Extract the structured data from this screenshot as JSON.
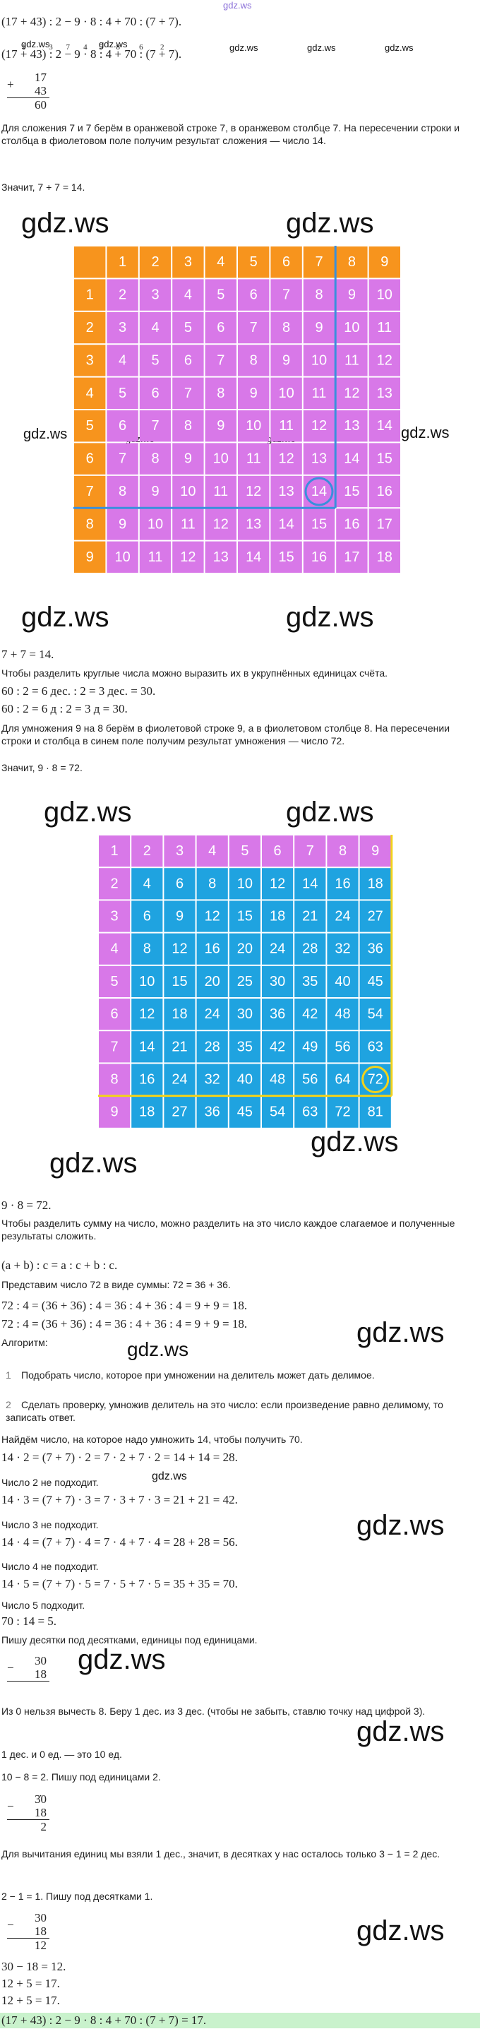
{
  "watermark": "gdz.ws",
  "expression": "(17 + 43) : 2 − 9 · 8 : 4 + 70 : (7 + 7).",
  "order_line": {
    "tokens": [
      "(17",
      "+",
      "43)",
      ":",
      "2",
      "−",
      "9",
      "·",
      "8",
      ":",
      "4",
      "+",
      "70",
      ":",
      "(7",
      "+",
      "7)."
    ],
    "marks": [
      1,
      3,
      7,
      4,
      5,
      8,
      6,
      2
    ]
  },
  "column_add": {
    "sign": "+",
    "rows": [
      "17",
      "43",
      "60"
    ]
  },
  "p_add": "Для сложения 7 и 7 берём в оранжевой строке 7, в оранжевом столбце 7. На пересечении строки и столбца в фиолетовом поле получим результат сложения — число 14.",
  "p_add_result": "Значит, 7 + 7 = 14.",
  "table1": {
    "col_header": [
      1,
      2,
      3,
      4,
      5,
      6,
      7,
      8,
      9
    ],
    "rows": [
      [
        1,
        2,
        3,
        4,
        5,
        6,
        7,
        8,
        9,
        10
      ],
      [
        2,
        3,
        4,
        5,
        6,
        7,
        8,
        9,
        10,
        11
      ],
      [
        3,
        4,
        5,
        6,
        7,
        8,
        9,
        10,
        11,
        12
      ],
      [
        4,
        5,
        6,
        7,
        8,
        9,
        10,
        11,
        12,
        13
      ],
      [
        5,
        6,
        7,
        8,
        9,
        10,
        11,
        12,
        13,
        14
      ],
      [
        6,
        7,
        8,
        9,
        10,
        11,
        12,
        13,
        14,
        15
      ],
      [
        7,
        8,
        9,
        10,
        11,
        12,
        13,
        14,
        15,
        16
      ],
      [
        8,
        9,
        10,
        11,
        12,
        13,
        14,
        15,
        16,
        17
      ],
      [
        9,
        10,
        11,
        12,
        13,
        14,
        15,
        16,
        17,
        18
      ]
    ]
  },
  "eq_add": "7 + 7 = 14.",
  "p_round": "Чтобы разделить круглые числа можно выразить их в укрупнённых единицах счёта.",
  "eq_div1": "60 : 2 = 6 дес. : 2 = 3 дес. = 30.",
  "eq_div2": "60 : 2 = 6 д : 2 = 3 д = 30.",
  "p_mul": "Для умножения 9 на 8 берём в фиолетовой строке 9, а в фиолетовом столбце 8. На пересечении строки и столбца в синем поле получим результат умножения — число 72.",
  "p_mul_result": "Значит, 9 · 8 = 72.",
  "table2": {
    "rows": [
      [
        1,
        2,
        3,
        4,
        5,
        6,
        7,
        8,
        9
      ],
      [
        2,
        4,
        6,
        8,
        10,
        12,
        14,
        16,
        18
      ],
      [
        3,
        6,
        9,
        12,
        15,
        18,
        21,
        24,
        27
      ],
      [
        4,
        8,
        12,
        16,
        20,
        24,
        28,
        32,
        36
      ],
      [
        5,
        10,
        15,
        20,
        25,
        30,
        35,
        40,
        45
      ],
      [
        6,
        12,
        18,
        24,
        30,
        36,
        42,
        48,
        54
      ],
      [
        7,
        14,
        21,
        28,
        35,
        42,
        49,
        56,
        63
      ],
      [
        8,
        16,
        24,
        32,
        40,
        48,
        56,
        64,
        72
      ],
      [
        9,
        18,
        27,
        36,
        45,
        54,
        63,
        72,
        81
      ]
    ]
  },
  "eq_mul": "9 · 8 = 72.",
  "p_sum_div": "Чтобы разделить сумму на число, можно разделить на это число каждое слагаемое и полученные результаты сложить.",
  "rule": "(a + b) : c = a : c + b : c.",
  "p_repr": "Представим число 72 в виде суммы: 72 = 36 + 36.",
  "eq_72a": "72 : 4 = (36 + 36) : 4 = 36 : 4 + 36 : 4 = 9 + 9 = 18.",
  "eq_72b": "72 : 4 = (36 + 36) : 4 = 36 : 4 + 36 : 4 = 9 + 9 = 18.",
  "algorithm_title": "Алгоритм:",
  "algorithm": [
    {
      "number": 1,
      "text": "Подобрать число, которое при умножении на делитель может дать делимое."
    },
    {
      "number": 2,
      "text": "Сделать проверку, умножив делитель на это число: если произведение равно делимому, то записать ответ."
    }
  ],
  "p_find": "Найдём число, на которое надо умножить 14, чтобы получить 70.",
  "trials": [
    {
      "eq": "14 · 2 = (7 + 7) · 2 = 7 · 2 + 7 · 2 = 14 + 14 = 28.",
      "note": "Число 2 не подходит."
    },
    {
      "eq": "14 · 3 = (7 + 7) · 3 = 7 · 3 + 7 · 3 = 21 + 21 = 42.",
      "note": "Число 3 не подходит."
    },
    {
      "eq": "14 · 4 = (7 + 7) · 4 = 7 · 4 + 7 · 4 = 28 + 28 = 56.",
      "note": "Число 4 не подходит."
    },
    {
      "eq": "14 · 5 = (7 + 7) · 5 = 7 · 5 + 7 · 5 = 35 + 35 = 70.",
      "note": "Число 5 подходит."
    }
  ],
  "eq_70": "70 : 14 = 5.",
  "p_write": "Пишу десятки под десятками, единицы под единицами.",
  "column_sub1": {
    "sign": "−",
    "rows": [
      "30",
      "18"
    ]
  },
  "p_borrow": "Из 0 нельзя вычесть 8. Беру 1 дес. из 3 дес. (чтобы не забыть, ставлю точку над цифрой 3).",
  "p_ten": "1 дес. и 0 ед. — это 10 ед.",
  "p_units": "10 − 8 = 2. Пишу под единицами 2.",
  "column_sub2": {
    "sign": "−",
    "rows": [
      "3̇0",
      "18",
      "2"
    ]
  },
  "p_tens": "Для вычитания единиц мы взяли 1 дес., значит, в десятках у нас осталось только 3 − 1 = 2 дес.",
  "p_tens2": "2 − 1 = 1. Пишу под десятками 1.",
  "column_sub3": {
    "sign": "−",
    "rows": [
      "30",
      "18",
      "12"
    ]
  },
  "eq_sub": "30 − 18 = 12.",
  "eq_add12a": "12 + 5 = 17.",
  "eq_add12b": "12 + 5 = 17.",
  "answer": "(17 + 43) : 2 − 9 · 8 : 4 + 70 : (7 + 7) = 17."
}
